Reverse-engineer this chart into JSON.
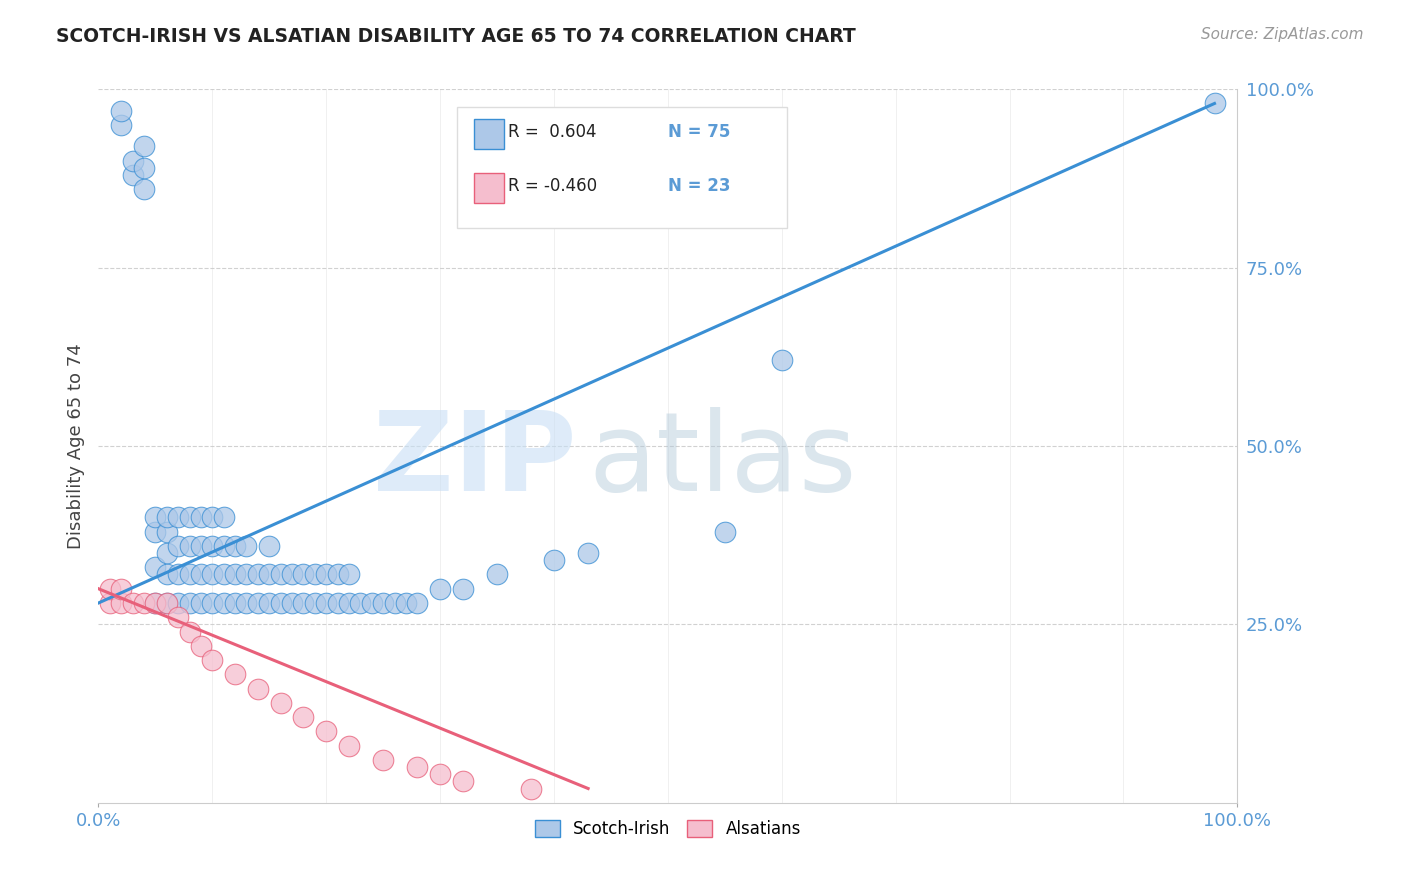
{
  "title": "SCOTCH-IRISH VS ALSATIAN DISABILITY AGE 65 TO 74 CORRELATION CHART",
  "source_text": "Source: ZipAtlas.com",
  "ylabel": "Disability Age 65 to 74",
  "xlim": [
    0,
    100
  ],
  "ylim": [
    0,
    100
  ],
  "legend_r": [
    "R =  0.604",
    "R = -0.460"
  ],
  "legend_n": [
    "N = 75",
    "N = 23"
  ],
  "scatter_blue_color": "#adc8e8",
  "scatter_pink_color": "#f5bece",
  "line_blue_color": "#3a8fd4",
  "line_pink_color": "#e8607a",
  "background_color": "#ffffff",
  "grid_color": "#cccccc",
  "title_color": "#222222",
  "source_color": "#999999",
  "tick_color": "#5b9bd5",
  "scotch_irish_x": [
    2,
    2,
    3,
    3,
    4,
    4,
    4,
    5,
    5,
    5,
    5,
    6,
    6,
    6,
    6,
    6,
    7,
    7,
    7,
    7,
    8,
    8,
    8,
    8,
    9,
    9,
    9,
    9,
    10,
    10,
    10,
    10,
    11,
    11,
    11,
    11,
    12,
    12,
    12,
    13,
    13,
    13,
    14,
    14,
    15,
    15,
    15,
    16,
    16,
    17,
    17,
    18,
    18,
    19,
    19,
    20,
    20,
    21,
    21,
    22,
    22,
    23,
    24,
    25,
    26,
    27,
    28,
    30,
    32,
    35,
    40,
    43,
    55,
    60,
    98
  ],
  "scotch_irish_y": [
    95,
    97,
    88,
    90,
    86,
    89,
    92,
    28,
    33,
    38,
    40,
    28,
    32,
    35,
    38,
    40,
    28,
    32,
    36,
    40,
    28,
    32,
    36,
    40,
    28,
    32,
    36,
    40,
    28,
    32,
    36,
    40,
    28,
    32,
    36,
    40,
    28,
    32,
    36,
    28,
    32,
    36,
    28,
    32,
    28,
    32,
    36,
    28,
    32,
    28,
    32,
    28,
    32,
    28,
    32,
    28,
    32,
    28,
    32,
    28,
    32,
    28,
    28,
    28,
    28,
    28,
    28,
    30,
    30,
    32,
    34,
    35,
    38,
    62,
    98
  ],
  "alsatian_x": [
    1,
    1,
    2,
    2,
    3,
    4,
    5,
    6,
    7,
    8,
    9,
    10,
    12,
    14,
    16,
    18,
    20,
    22,
    25,
    28,
    30,
    32,
    38
  ],
  "alsatian_y": [
    28,
    30,
    28,
    30,
    28,
    28,
    28,
    28,
    26,
    24,
    22,
    20,
    18,
    16,
    14,
    12,
    10,
    8,
    6,
    5,
    4,
    3,
    2
  ],
  "blue_line_x": [
    0,
    98
  ],
  "blue_line_y": [
    28,
    98
  ],
  "pink_line_x": [
    0,
    43
  ],
  "pink_line_y": [
    30,
    2
  ],
  "watermark_zip_color": "#c8dff5",
  "watermark_atlas_color": "#b0c8d8"
}
